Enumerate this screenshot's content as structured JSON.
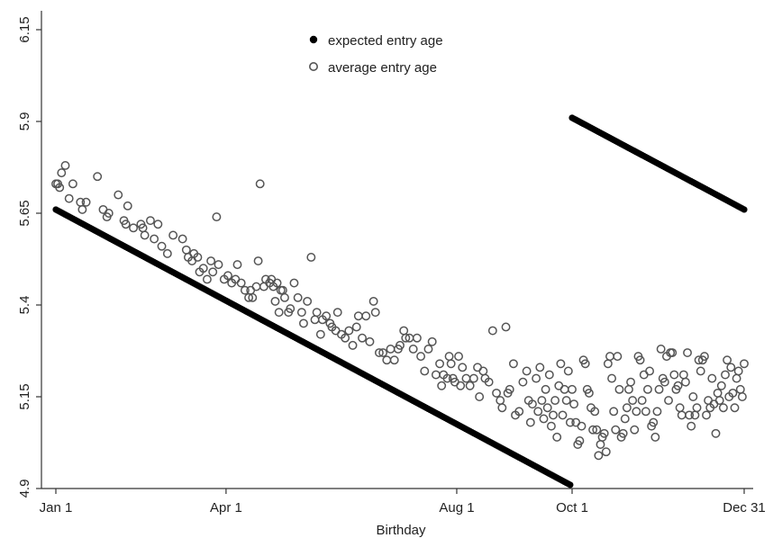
{
  "chart_data": {
    "type": "scatter",
    "title": "",
    "xlabel": "Birthday",
    "ylabel": "",
    "xlim": [
      0,
      364
    ],
    "ylim": [
      4.9,
      6.15
    ],
    "x_ticks": [
      {
        "label": "Jan 1",
        "day": 0
      },
      {
        "label": "Apr 1",
        "day": 90
      },
      {
        "label": "Aug 1",
        "day": 212
      },
      {
        "label": "Oct 1",
        "day": 273
      },
      {
        "label": "Dec 31",
        "day": 364
      }
    ],
    "y_ticks": [
      {
        "label": "4.9",
        "value": 4.9
      },
      {
        "label": "5.15",
        "value": 5.15
      },
      {
        "label": "5.4",
        "value": 5.4
      },
      {
        "label": "5.65",
        "value": 5.65
      },
      {
        "label": "5.9",
        "value": 5.9
      },
      {
        "label": "6.15",
        "value": 6.15
      }
    ],
    "grid": false,
    "legend_position": "top-center",
    "series": [
      {
        "name": "expected entry age",
        "marker": "filled-circle",
        "segments": [
          {
            "x_start": 0,
            "x_end": 272,
            "y_start": 5.66,
            "y_end": 4.91
          },
          {
            "x_start": 273,
            "x_end": 364,
            "y_start": 5.91,
            "y_end": 5.66
          }
        ]
      },
      {
        "name": "average entry age",
        "marker": "hollow-circle",
        "points": [
          [
            0,
            5.73
          ],
          [
            1,
            5.73
          ],
          [
            2,
            5.72
          ],
          [
            3,
            5.76
          ],
          [
            5,
            5.78
          ],
          [
            7,
            5.69
          ],
          [
            9,
            5.73
          ],
          [
            13,
            5.68
          ],
          [
            14,
            5.66
          ],
          [
            16,
            5.68
          ],
          [
            22,
            5.75
          ],
          [
            25,
            5.66
          ],
          [
            27,
            5.64
          ],
          [
            28,
            5.65
          ],
          [
            33,
            5.7
          ],
          [
            36,
            5.63
          ],
          [
            37,
            5.62
          ],
          [
            38,
            5.67
          ],
          [
            41,
            5.61
          ],
          [
            45,
            5.62
          ],
          [
            46,
            5.61
          ],
          [
            47,
            5.59
          ],
          [
            50,
            5.63
          ],
          [
            52,
            5.58
          ],
          [
            54,
            5.62
          ],
          [
            56,
            5.56
          ],
          [
            59,
            5.54
          ],
          [
            62,
            5.59
          ],
          [
            67,
            5.58
          ],
          [
            69,
            5.55
          ],
          [
            70,
            5.53
          ],
          [
            72,
            5.52
          ],
          [
            73,
            5.54
          ],
          [
            75,
            5.53
          ],
          [
            76,
            5.49
          ],
          [
            78,
            5.5
          ],
          [
            80,
            5.47
          ],
          [
            82,
            5.52
          ],
          [
            83,
            5.49
          ],
          [
            85,
            5.64
          ],
          [
            86,
            5.51
          ],
          [
            89,
            5.47
          ],
          [
            91,
            5.48
          ],
          [
            93,
            5.46
          ],
          [
            95,
            5.47
          ],
          [
            96,
            5.51
          ],
          [
            98,
            5.46
          ],
          [
            100,
            5.44
          ],
          [
            102,
            5.42
          ],
          [
            103,
            5.44
          ],
          [
            104,
            5.42
          ],
          [
            106,
            5.45
          ],
          [
            107,
            5.52
          ],
          [
            108,
            5.73
          ],
          [
            110,
            5.45
          ],
          [
            111,
            5.47
          ],
          [
            113,
            5.46
          ],
          [
            114,
            5.47
          ],
          [
            115,
            5.45
          ],
          [
            116,
            5.41
          ],
          [
            117,
            5.46
          ],
          [
            118,
            5.38
          ],
          [
            119,
            5.44
          ],
          [
            120,
            5.44
          ],
          [
            121,
            5.42
          ],
          [
            123,
            5.38
          ],
          [
            124,
            5.39
          ],
          [
            126,
            5.46
          ],
          [
            128,
            5.42
          ],
          [
            130,
            5.38
          ],
          [
            131,
            5.35
          ],
          [
            133,
            5.41
          ],
          [
            135,
            5.53
          ],
          [
            137,
            5.36
          ],
          [
            138,
            5.38
          ],
          [
            140,
            5.32
          ],
          [
            141,
            5.36
          ],
          [
            143,
            5.37
          ],
          [
            145,
            5.35
          ],
          [
            146,
            5.34
          ],
          [
            148,
            5.33
          ],
          [
            149,
            5.38
          ],
          [
            151,
            5.32
          ],
          [
            153,
            5.31
          ],
          [
            155,
            5.33
          ],
          [
            157,
            5.29
          ],
          [
            159,
            5.34
          ],
          [
            160,
            5.37
          ],
          [
            162,
            5.31
          ],
          [
            164,
            5.37
          ],
          [
            166,
            5.3
          ],
          [
            168,
            5.41
          ],
          [
            169,
            5.38
          ],
          [
            171,
            5.27
          ],
          [
            173,
            5.27
          ],
          [
            175,
            5.25
          ],
          [
            177,
            5.28
          ],
          [
            179,
            5.25
          ],
          [
            181,
            5.28
          ],
          [
            182,
            5.29
          ],
          [
            184,
            5.33
          ],
          [
            185,
            5.31
          ],
          [
            187,
            5.31
          ],
          [
            189,
            5.28
          ],
          [
            191,
            5.31
          ],
          [
            193,
            5.26
          ],
          [
            195,
            5.22
          ],
          [
            197,
            5.28
          ],
          [
            199,
            5.3
          ],
          [
            201,
            5.21
          ],
          [
            203,
            5.24
          ],
          [
            204,
            5.18
          ],
          [
            205,
            5.21
          ],
          [
            207,
            5.2
          ],
          [
            208,
            5.26
          ],
          [
            209,
            5.24
          ],
          [
            210,
            5.2
          ],
          [
            211,
            5.19
          ],
          [
            213,
            5.26
          ],
          [
            214,
            5.18
          ],
          [
            215,
            5.23
          ],
          [
            217,
            5.2
          ],
          [
            219,
            5.18
          ],
          [
            221,
            5.2
          ],
          [
            223,
            5.23
          ],
          [
            224,
            5.15
          ],
          [
            226,
            5.22
          ],
          [
            227,
            5.2
          ],
          [
            229,
            5.19
          ],
          [
            231,
            5.33
          ],
          [
            233,
            5.16
          ],
          [
            235,
            5.14
          ],
          [
            236,
            5.12
          ],
          [
            238,
            5.34
          ],
          [
            239,
            5.16
          ],
          [
            240,
            5.17
          ],
          [
            242,
            5.24
          ],
          [
            243,
            5.1
          ],
          [
            245,
            5.11
          ],
          [
            247,
            5.19
          ],
          [
            249,
            5.22
          ],
          [
            250,
            5.14
          ],
          [
            251,
            5.08
          ],
          [
            252,
            5.13
          ],
          [
            254,
            5.2
          ],
          [
            255,
            5.11
          ],
          [
            256,
            5.23
          ],
          [
            257,
            5.14
          ],
          [
            258,
            5.09
          ],
          [
            259,
            5.17
          ],
          [
            260,
            5.12
          ],
          [
            261,
            5.21
          ],
          [
            262,
            5.07
          ],
          [
            263,
            5.1
          ],
          [
            264,
            5.14
          ],
          [
            265,
            5.04
          ],
          [
            266,
            5.18
          ],
          [
            267,
            5.24
          ],
          [
            268,
            5.1
          ],
          [
            269,
            5.17
          ],
          [
            270,
            5.14
          ],
          [
            271,
            5.22
          ],
          [
            272,
            5.08
          ],
          [
            273,
            5.17
          ],
          [
            274,
            5.13
          ],
          [
            275,
            5.08
          ],
          [
            276,
            5.02
          ],
          [
            277,
            5.03
          ],
          [
            278,
            5.07
          ],
          [
            279,
            5.25
          ],
          [
            280,
            5.24
          ],
          [
            281,
            5.17
          ],
          [
            282,
            5.16
          ],
          [
            283,
            5.12
          ],
          [
            284,
            5.06
          ],
          [
            285,
            5.11
          ],
          [
            286,
            5.06
          ],
          [
            287,
            4.99
          ],
          [
            288,
            5.02
          ],
          [
            289,
            5.04
          ],
          [
            290,
            5.05
          ],
          [
            291,
            5.0
          ],
          [
            292,
            5.24
          ],
          [
            293,
            5.26
          ],
          [
            294,
            5.2
          ],
          [
            295,
            5.11
          ],
          [
            296,
            5.06
          ],
          [
            297,
            5.26
          ],
          [
            298,
            5.17
          ],
          [
            299,
            5.04
          ],
          [
            300,
            5.05
          ],
          [
            301,
            5.09
          ],
          [
            302,
            5.12
          ],
          [
            303,
            5.17
          ],
          [
            304,
            5.19
          ],
          [
            305,
            5.14
          ],
          [
            306,
            5.06
          ],
          [
            307,
            5.11
          ],
          [
            308,
            5.26
          ],
          [
            309,
            5.25
          ],
          [
            310,
            5.14
          ],
          [
            311,
            5.21
          ],
          [
            312,
            5.11
          ],
          [
            313,
            5.17
          ],
          [
            314,
            5.22
          ],
          [
            315,
            5.07
          ],
          [
            316,
            5.08
          ],
          [
            317,
            5.04
          ],
          [
            318,
            5.11
          ],
          [
            319,
            5.17
          ],
          [
            320,
            5.28
          ],
          [
            321,
            5.2
          ],
          [
            322,
            5.19
          ],
          [
            323,
            5.26
          ],
          [
            324,
            5.14
          ],
          [
            325,
            5.27
          ],
          [
            326,
            5.27
          ],
          [
            327,
            5.21
          ],
          [
            328,
            5.17
          ],
          [
            329,
            5.18
          ],
          [
            330,
            5.12
          ],
          [
            331,
            5.1
          ],
          [
            332,
            5.21
          ],
          [
            333,
            5.19
          ],
          [
            334,
            5.27
          ],
          [
            335,
            5.1
          ],
          [
            336,
            5.07
          ],
          [
            337,
            5.15
          ],
          [
            338,
            5.1
          ],
          [
            339,
            5.12
          ],
          [
            340,
            5.25
          ],
          [
            341,
            5.22
          ],
          [
            342,
            5.25
          ],
          [
            343,
            5.26
          ],
          [
            344,
            5.1
          ],
          [
            345,
            5.14
          ],
          [
            346,
            5.12
          ],
          [
            347,
            5.2
          ],
          [
            348,
            5.13
          ],
          [
            349,
            5.05
          ],
          [
            350,
            5.16
          ],
          [
            351,
            5.14
          ],
          [
            352,
            5.18
          ],
          [
            353,
            5.12
          ],
          [
            354,
            5.21
          ],
          [
            355,
            5.25
          ],
          [
            356,
            5.15
          ],
          [
            357,
            5.23
          ],
          [
            358,
            5.16
          ],
          [
            359,
            5.12
          ],
          [
            360,
            5.2
          ],
          [
            361,
            5.22
          ],
          [
            362,
            5.17
          ],
          [
            363,
            5.15
          ],
          [
            364,
            5.24
          ]
        ]
      }
    ]
  }
}
